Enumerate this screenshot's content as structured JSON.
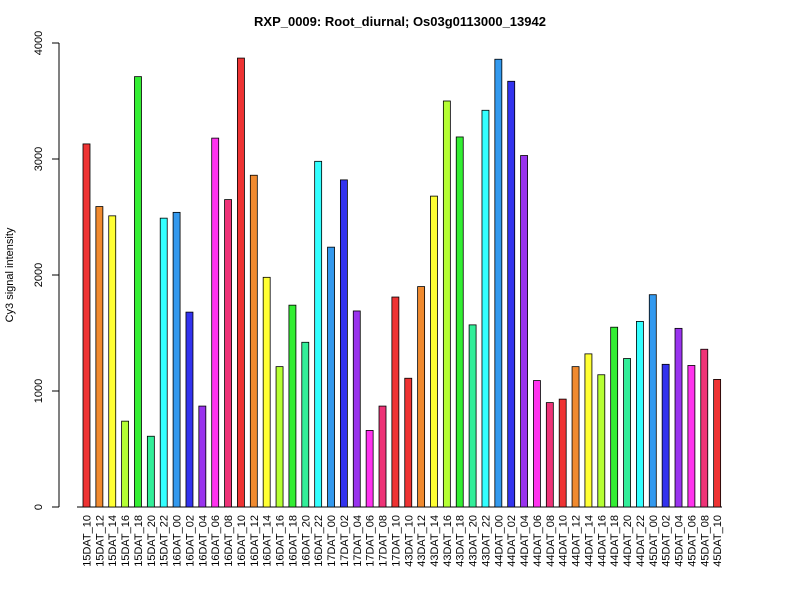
{
  "chart_data": {
    "type": "bar",
    "title": "RXP_0009: Root_diurnal; Os03g0113000_13942",
    "xlabel": "",
    "ylabel": "Cy3 signal intensity",
    "ylim": [
      0,
      4000
    ],
    "yticks": [
      0,
      1000,
      2000,
      3000,
      4000
    ],
    "categories": [
      "15DAT_10",
      "15DAT_12",
      "15DAT_14",
      "15DAT_16",
      "15DAT_18",
      "15DAT_20",
      "15DAT_22",
      "16DAT_00",
      "16DAT_02",
      "16DAT_04",
      "16DAT_06",
      "16DAT_08",
      "16DAT_10",
      "16DAT_12",
      "16DAT_14",
      "16DAT_16",
      "16DAT_18",
      "16DAT_20",
      "16DAT_22",
      "17DAT_00",
      "17DAT_02",
      "17DAT_04",
      "17DAT_06",
      "17DAT_08",
      "17DAT_10",
      "43DAT_10",
      "43DAT_12",
      "43DAT_14",
      "43DAT_16",
      "43DAT_18",
      "43DAT_20",
      "43DAT_22",
      "44DAT_00",
      "44DAT_02",
      "44DAT_04",
      "44DAT_06",
      "44DAT_08",
      "44DAT_10",
      "44DAT_12",
      "44DAT_14",
      "44DAT_16",
      "44DAT_18",
      "44DAT_20",
      "44DAT_22",
      "45DAT_00",
      "45DAT_02",
      "45DAT_04",
      "45DAT_06",
      "45DAT_08",
      "45DAT_10"
    ],
    "values": [
      3130,
      2590,
      2510,
      740,
      3710,
      610,
      2490,
      2540,
      1680,
      870,
      3180,
      2650,
      3870,
      2860,
      1980,
      1210,
      1740,
      1420,
      2980,
      2240,
      2820,
      1690,
      660,
      870,
      1810,
      1110,
      1900,
      2680,
      3500,
      3190,
      1570,
      3420,
      3860,
      3670,
      3030,
      1090,
      900,
      930,
      1210,
      1320,
      1140,
      1550,
      1280,
      1600,
      1830,
      1230,
      1540,
      1220,
      1360,
      1100
    ],
    "colors": [
      "#ee3333",
      "#f08a2f",
      "#ffff33",
      "#b5ff33",
      "#33ee33",
      "#33ee99",
      "#33ffff",
      "#3399ee",
      "#3333ee",
      "#9933ee",
      "#ff33ee",
      "#ee3377",
      "#ee3333",
      "#f08a2f",
      "#ffff33",
      "#b5ff33",
      "#33ee33",
      "#33ee99",
      "#33ffff",
      "#3399ee",
      "#3333ee",
      "#9933ee",
      "#ff33ee",
      "#ee3377",
      "#ee3333",
      "#ee3333",
      "#f08a2f",
      "#ffff33",
      "#b5ff33",
      "#33ee33",
      "#33ee99",
      "#33ffff",
      "#3399ee",
      "#3333ee",
      "#9933ee",
      "#ff33ee",
      "#ee3377",
      "#ee3333",
      "#f08a2f",
      "#ffff33",
      "#b5ff33",
      "#33ee33",
      "#33ee99",
      "#33ffff",
      "#3399ee",
      "#3333ee",
      "#9933ee",
      "#ff33ee",
      "#ee3377",
      "#ee3333"
    ],
    "grid": false,
    "legend": "none"
  }
}
